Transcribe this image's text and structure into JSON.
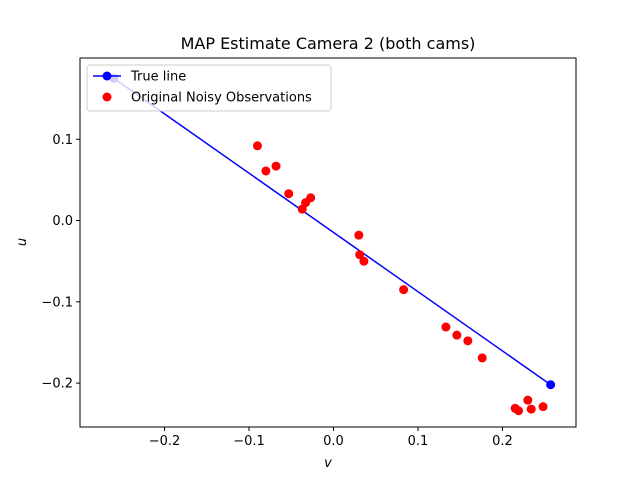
{
  "chart_data": {
    "type": "scatter",
    "title": "MAP Estimate Camera 2 (both cams)",
    "xlabel": "v",
    "ylabel": "u",
    "xlim": [
      -0.3,
      0.287
    ],
    "ylim": [
      -0.254,
      0.2
    ],
    "xticks": [
      -0.2,
      -0.1,
      0.0,
      0.1,
      0.2
    ],
    "xtick_labels": [
      "−0.2",
      "−0.1",
      "0.0",
      "0.1",
      "0.2"
    ],
    "yticks": [
      0.1,
      0.0,
      -0.1,
      -0.2
    ],
    "ytick_labels": [
      "0.1",
      "0.0",
      "−0.1",
      "−0.2"
    ],
    "grid": false,
    "legend_position": "top-left",
    "series": [
      {
        "name": "True line",
        "kind": "line-with-end-markers",
        "color": "#0000ff",
        "x": [
          -0.26,
          0.257
        ],
        "y": [
          0.175,
          -0.202
        ]
      },
      {
        "name": "Original Noisy Observations",
        "kind": "scatter",
        "color": "#ff0000",
        "x": [
          -0.09,
          -0.08,
          -0.068,
          -0.053,
          -0.037,
          -0.033,
          -0.027,
          0.03,
          0.031,
          0.036,
          0.083,
          0.133,
          0.146,
          0.159,
          0.176,
          0.215,
          0.219,
          0.23,
          0.234,
          0.248
        ],
        "y": [
          0.092,
          0.061,
          0.067,
          0.033,
          0.014,
          0.022,
          0.028,
          -0.018,
          -0.042,
          -0.05,
          -0.085,
          -0.131,
          -0.141,
          -0.148,
          -0.169,
          -0.231,
          -0.234,
          -0.221,
          -0.232,
          -0.229
        ]
      }
    ]
  }
}
